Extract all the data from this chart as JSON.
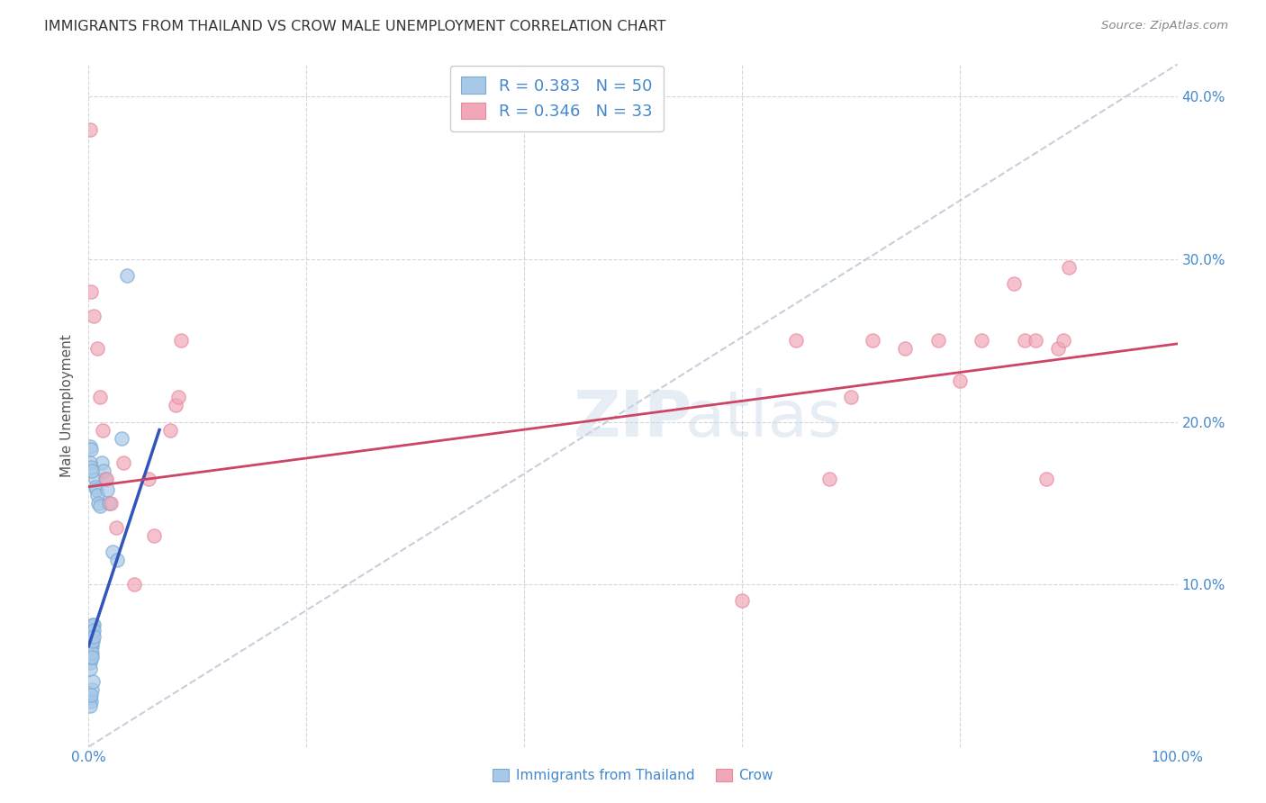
{
  "title": "IMMIGRANTS FROM THAILAND VS CROW MALE UNEMPLOYMENT CORRELATION CHART",
  "source": "Source: ZipAtlas.com",
  "ylabel": "Male Unemployment",
  "legend1_label": "Immigrants from Thailand",
  "legend2_label": "Crow",
  "R1": 0.383,
  "N1": 50,
  "R2": 0.346,
  "N2": 33,
  "color_blue": "#a8c8e8",
  "color_pink": "#f0a8b8",
  "color_blue_edge": "#7aaad0",
  "color_pink_edge": "#e888a0",
  "color_blue_line": "#3355bb",
  "color_pink_line": "#cc4466",
  "color_diag": "#b8c4d4",
  "title_color": "#333333",
  "source_color": "#888888",
  "axis_color": "#4488cc",
  "blue_scatter_x": [
    0.001,
    0.001,
    0.001,
    0.001,
    0.001,
    0.001,
    0.001,
    0.002,
    0.002,
    0.002,
    0.002,
    0.002,
    0.002,
    0.003,
    0.003,
    0.003,
    0.003,
    0.003,
    0.004,
    0.004,
    0.004,
    0.005,
    0.005,
    0.005,
    0.006,
    0.006,
    0.007,
    0.008,
    0.009,
    0.01,
    0.012,
    0.014,
    0.015,
    0.017,
    0.019,
    0.022,
    0.026,
    0.03,
    0.035,
    0.001,
    0.002,
    0.003,
    0.001,
    0.002,
    0.001,
    0.002,
    0.001,
    0.003,
    0.002,
    0.004
  ],
  "blue_scatter_y": [
    0.065,
    0.062,
    0.06,
    0.058,
    0.055,
    0.052,
    0.048,
    0.068,
    0.065,
    0.062,
    0.06,
    0.058,
    0.055,
    0.07,
    0.065,
    0.062,
    0.058,
    0.055,
    0.075,
    0.07,
    0.065,
    0.075,
    0.072,
    0.068,
    0.165,
    0.16,
    0.158,
    0.155,
    0.15,
    0.148,
    0.175,
    0.17,
    0.165,
    0.158,
    0.15,
    0.12,
    0.115,
    0.19,
    0.29,
    0.175,
    0.172,
    0.17,
    0.185,
    0.183,
    0.03,
    0.028,
    0.025,
    0.035,
    0.032,
    0.04
  ],
  "pink_scatter_x": [
    0.001,
    0.002,
    0.005,
    0.008,
    0.01,
    0.013,
    0.016,
    0.02,
    0.025,
    0.032,
    0.042,
    0.055,
    0.06,
    0.075,
    0.08,
    0.082,
    0.085,
    0.6,
    0.65,
    0.68,
    0.7,
    0.72,
    0.75,
    0.78,
    0.8,
    0.82,
    0.85,
    0.86,
    0.87,
    0.88,
    0.89,
    0.895,
    0.9
  ],
  "pink_scatter_y": [
    0.38,
    0.28,
    0.265,
    0.245,
    0.215,
    0.195,
    0.165,
    0.15,
    0.135,
    0.175,
    0.1,
    0.165,
    0.13,
    0.195,
    0.21,
    0.215,
    0.25,
    0.09,
    0.25,
    0.165,
    0.215,
    0.25,
    0.245,
    0.25,
    0.225,
    0.25,
    0.285,
    0.25,
    0.25,
    0.165,
    0.245,
    0.25,
    0.295
  ],
  "xlim": [
    0.0,
    1.0
  ],
  "ylim": [
    0.0,
    0.42
  ],
  "blue_line_x": [
    0.0,
    0.065
  ],
  "blue_line_y": [
    0.062,
    0.195
  ],
  "pink_line_x": [
    0.0,
    1.0
  ],
  "pink_line_y": [
    0.16,
    0.248
  ],
  "diag_line_x": [
    0.0,
    1.0
  ],
  "diag_line_y": [
    0.0,
    0.42
  ]
}
